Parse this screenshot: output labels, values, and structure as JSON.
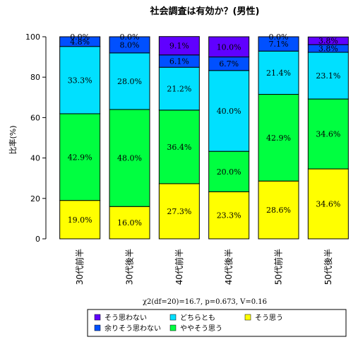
{
  "chart_data": {
    "type": "bar",
    "stacked": true,
    "title": "社会調査は有効か？(男性)",
    "ylabel": "比率(%)",
    "ylim": [
      0,
      100
    ],
    "yticks": [
      0,
      20,
      40,
      60,
      80,
      100
    ],
    "categories": [
      "30代前半",
      "30代後半",
      "40代前半",
      "40代後半",
      "50代前半",
      "50代後半"
    ],
    "series": [
      {
        "name": "そう思う",
        "color": "#ffff00",
        "values": [
          19.0,
          16.0,
          27.3,
          23.3,
          28.6,
          34.6
        ]
      },
      {
        "name": "ややそう思う",
        "color": "#00ff40",
        "values": [
          42.9,
          48.0,
          36.4,
          20.0,
          42.9,
          34.6
        ]
      },
      {
        "name": "どちらとも",
        "color": "#00e0ff",
        "values": [
          33.3,
          28.0,
          21.2,
          40.0,
          21.4,
          23.1
        ]
      },
      {
        "name": "余りそう思わない",
        "color": "#0050ff",
        "values": [
          4.8,
          8.0,
          6.1,
          6.7,
          7.1,
          3.8
        ]
      },
      {
        "name": "そう思わない",
        "color": "#6000ff",
        "values": [
          0.0,
          0.0,
          9.1,
          10.0,
          0.0,
          3.8
        ]
      }
    ],
    "legend_order": [
      "そう思わない",
      "余りそう思わない",
      "どちらとも",
      "ややそう思う",
      "そう思う"
    ],
    "note": "χ2(df=20)=16.7, p=0.673, V=0.16",
    "grid": false,
    "legend_placement": "bottom"
  }
}
